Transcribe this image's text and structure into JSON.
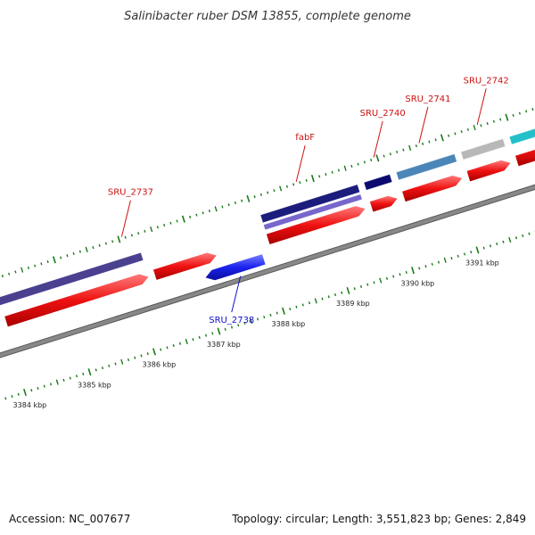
{
  "title": "Salinibacter ruber DSM 13855, complete genome",
  "footer": {
    "accession": "Accession: NC_007677",
    "summary": "Topology: circular; Length: 3,551,823 bp; Genes: 2,849"
  },
  "colors": {
    "backbone": "#888888",
    "tick": "#1a7a1a",
    "forward_cds": "#ee1111",
    "reverse_cds": "#1a22ee",
    "label_forward": "#cc1111",
    "label_reverse": "#1111cc"
  },
  "scale": {
    "unit": "kbp",
    "labels": [
      {
        "kbp": 3384,
        "text": "3384 kbp"
      },
      {
        "kbp": 3385,
        "text": "3385 kbp"
      },
      {
        "kbp": 3386,
        "text": "3386 kbp"
      },
      {
        "kbp": 3387,
        "text": "3387 kbp"
      },
      {
        "kbp": 3388,
        "text": "3388 kbp"
      },
      {
        "kbp": 3389,
        "text": "3389 kbp"
      },
      {
        "kbp": 3390,
        "text": "3390 kbp"
      },
      {
        "kbp": 3391,
        "text": "3391 kbp"
      }
    ]
  },
  "genes": [
    {
      "name": "",
      "start": 3384.05,
      "end": 3386.25,
      "strand": "+",
      "lane": "forward"
    },
    {
      "name": "SRU_2737",
      "start": 3386.35,
      "end": 3387.3,
      "strand": "+",
      "lane": "forward",
      "label_kbp": 3386.05,
      "label_side": "top"
    },
    {
      "name": "SRU_2738",
      "start": 3387.05,
      "end": 3387.95,
      "strand": "-",
      "lane": "reverse",
      "label_kbp": 3387.55,
      "label_side": "bottom"
    },
    {
      "name": "",
      "start": 3388.1,
      "end": 3389.6,
      "strand": "+",
      "lane": "forward"
    },
    {
      "name": "",
      "start": 3389.7,
      "end": 3390.1,
      "strand": "+",
      "lane": "forward"
    },
    {
      "name": "",
      "start": 3390.2,
      "end": 3391.1,
      "strand": "+",
      "lane": "forward"
    },
    {
      "name": "",
      "start": 3391.2,
      "end": 3391.85,
      "strand": "+",
      "lane": "forward"
    },
    {
      "name": "",
      "start": 3391.95,
      "end": 3393.0,
      "strand": "+",
      "lane": "forward"
    }
  ],
  "feature_bars": [
    {
      "name": "",
      "start": 3384.0,
      "end": 3386.25,
      "color": "#4a4090",
      "lane": "outer"
    },
    {
      "name": "fabF",
      "start": 3388.1,
      "end": 3389.6,
      "color": "#1c1c7c",
      "lane": "outer",
      "label_kbp": 3388.75,
      "label_color": "#cc1111"
    },
    {
      "name": "",
      "start": 3388.1,
      "end": 3389.6,
      "color": "#7766cc",
      "lane": "middle"
    },
    {
      "name": "SRU_2740",
      "start": 3389.7,
      "end": 3390.1,
      "color": "#0a0a70",
      "lane": "outer",
      "label_kbp": 3389.95,
      "label_color": "#cc1111"
    },
    {
      "name": "SRU_2741",
      "start": 3390.2,
      "end": 3391.1,
      "color": "#4b86b8",
      "lane": "outer",
      "label_kbp": 3390.65,
      "label_color": "#cc1111"
    },
    {
      "name": "SRU_2742",
      "start": 3391.2,
      "end": 3391.85,
      "color": "#b8b8b8",
      "lane": "outer",
      "label_kbp": 3391.55,
      "label_color": "#cc1111"
    },
    {
      "name": "",
      "start": 3391.95,
      "end": 3393.0,
      "color": "#22c0c8",
      "lane": "outer"
    }
  ]
}
